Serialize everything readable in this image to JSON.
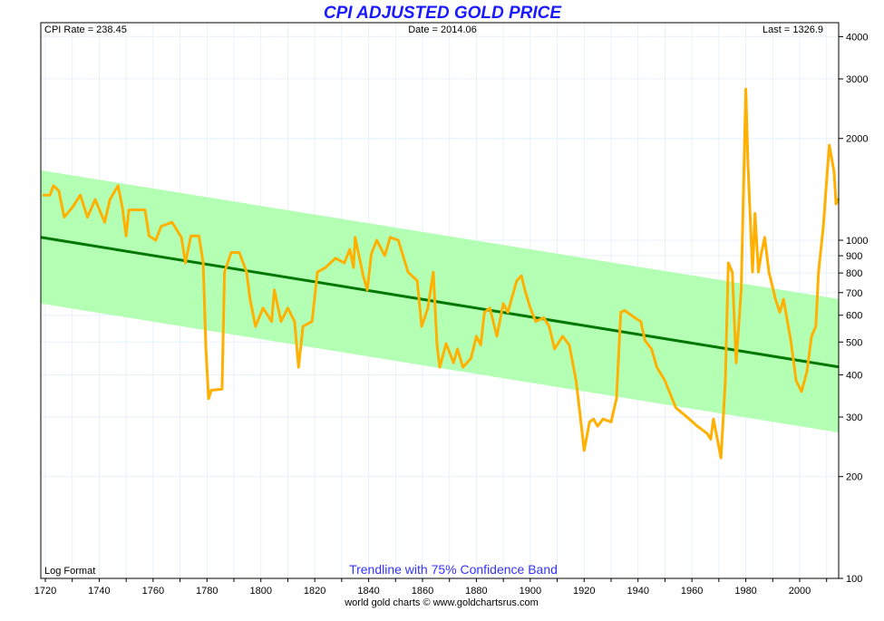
{
  "chart_data": {
    "type": "line",
    "title": "CPI ADJUSTED GOLD PRICE",
    "info": {
      "cpi_rate": "CPI Rate = 238.45",
      "date": "Date = 2014.06",
      "last": "Last = 1326.9"
    },
    "scale_note": "Log Format",
    "annotation": "Trendline with 75% Confidence Band",
    "footer": "world gold charts © www.goldchartsrus.com",
    "y_scale": "log",
    "ylim": [
      100,
      4400
    ],
    "xlim": [
      1718.3,
      2014.5
    ],
    "grid": true,
    "x_ticks": [
      "1720",
      "1740",
      "1760",
      "1780",
      "1800",
      "1820",
      "1840",
      "1860",
      "1880",
      "1900",
      "1920",
      "1940",
      "1960",
      "1980",
      "2000"
    ],
    "y_ticks": [
      "100",
      "200",
      "300",
      "400",
      "500",
      "600",
      "700",
      "800",
      "900",
      "1000",
      "2000",
      "3000",
      "4000"
    ],
    "colors": {
      "price": "#ffb000",
      "trend": "#007700",
      "band": "#b3ffb3",
      "grid": "#e6f2fa",
      "title": "#1a1aff",
      "annotation": "#3333ff"
    },
    "trendline": [
      [
        1718.3,
        1020
      ],
      [
        2014.5,
        422
      ]
    ],
    "band_upper": [
      [
        1718.3,
        1610
      ],
      [
        2014.5,
        670
      ]
    ],
    "band_lower": [
      [
        1718.3,
        650
      ],
      [
        2014.5,
        270
      ]
    ],
    "series": [
      {
        "values": [
          [
            1719,
            1360
          ],
          [
            1721.7,
            1360
          ],
          [
            1723,
            1450
          ],
          [
            1725,
            1400
          ],
          [
            1727,
            1170
          ],
          [
            1730,
            1250
          ],
          [
            1733,
            1360
          ],
          [
            1735.6,
            1170
          ],
          [
            1738.5,
            1320
          ],
          [
            1742,
            1130
          ],
          [
            1744,
            1320
          ],
          [
            1747,
            1450
          ],
          [
            1748.6,
            1250
          ],
          [
            1750,
            1030
          ],
          [
            1751,
            1230
          ],
          [
            1757,
            1230
          ],
          [
            1758.5,
            1030
          ],
          [
            1761,
            1000
          ],
          [
            1763,
            1100
          ],
          [
            1767,
            1130
          ],
          [
            1770.5,
            1020
          ],
          [
            1772,
            857
          ],
          [
            1774,
            1030
          ],
          [
            1777,
            1030
          ],
          [
            1778.6,
            857
          ],
          [
            1779.6,
            477
          ],
          [
            1780.6,
            340
          ],
          [
            1781.6,
            360
          ],
          [
            1785.6,
            363
          ],
          [
            1786.5,
            805
          ],
          [
            1789,
            920
          ],
          [
            1792,
            920
          ],
          [
            1794.7,
            805
          ],
          [
            1796,
            669
          ],
          [
            1798,
            556
          ],
          [
            1800.8,
            630
          ],
          [
            1804,
            575
          ],
          [
            1805,
            713
          ],
          [
            1807.5,
            575
          ],
          [
            1810,
            630
          ],
          [
            1812.5,
            575
          ],
          [
            1814,
            421
          ],
          [
            1815.6,
            556
          ],
          [
            1819,
            575
          ],
          [
            1821,
            805
          ],
          [
            1824,
            830
          ],
          [
            1827.7,
            885
          ],
          [
            1831,
            857
          ],
          [
            1833,
            940
          ],
          [
            1834.4,
            830
          ],
          [
            1835,
            1020
          ],
          [
            1838,
            785
          ],
          [
            1839.5,
            713
          ],
          [
            1841,
            910
          ],
          [
            1843,
            1000
          ],
          [
            1846,
            900
          ],
          [
            1848,
            1020
          ],
          [
            1851,
            1000
          ],
          [
            1854.6,
            805
          ],
          [
            1858,
            760
          ],
          [
            1859.7,
            556
          ],
          [
            1862,
            630
          ],
          [
            1864,
            805
          ],
          [
            1865.4,
            490
          ],
          [
            1866.4,
            421
          ],
          [
            1868.8,
            495
          ],
          [
            1871.5,
            434
          ],
          [
            1873,
            477
          ],
          [
            1875,
            421
          ],
          [
            1878,
            448
          ],
          [
            1880,
            520
          ],
          [
            1881.6,
            490
          ],
          [
            1883,
            612
          ],
          [
            1885,
            630
          ],
          [
            1887.6,
            520
          ],
          [
            1890,
            650
          ],
          [
            1891.7,
            612
          ],
          [
            1893,
            669
          ],
          [
            1895,
            760
          ],
          [
            1896.7,
            785
          ],
          [
            1898,
            713
          ],
          [
            1900,
            630
          ],
          [
            1902,
            575
          ],
          [
            1905,
            590
          ],
          [
            1907,
            556
          ],
          [
            1909,
            477
          ],
          [
            1912,
            520
          ],
          [
            1914.5,
            490
          ],
          [
            1917,
            384
          ],
          [
            1918.6,
            300
          ],
          [
            1920,
            239
          ],
          [
            1922,
            290
          ],
          [
            1923.5,
            296
          ],
          [
            1925,
            282
          ],
          [
            1927,
            296
          ],
          [
            1930,
            290
          ],
          [
            1932,
            340
          ],
          [
            1933.6,
            612
          ],
          [
            1935,
            620
          ],
          [
            1938.8,
            590
          ],
          [
            1941,
            575
          ],
          [
            1942.6,
            505
          ],
          [
            1945,
            477
          ],
          [
            1947,
            421
          ],
          [
            1950,
            384
          ],
          [
            1954,
            320
          ],
          [
            1959,
            296
          ],
          [
            1962,
            282
          ],
          [
            1965.7,
            268
          ],
          [
            1967,
            258
          ],
          [
            1968,
            296
          ],
          [
            1970.8,
            227
          ],
          [
            1972.4,
            384
          ],
          [
            1973.5,
            857
          ],
          [
            1975,
            805
          ],
          [
            1976.4,
            434
          ],
          [
            1978.3,
            713
          ],
          [
            1980,
            2800
          ],
          [
            1980.8,
            1690
          ],
          [
            1982.5,
            805
          ],
          [
            1983.4,
            1200
          ],
          [
            1984.7,
            805
          ],
          [
            1985.7,
            910
          ],
          [
            1987,
            1020
          ],
          [
            1988.6,
            805
          ],
          [
            1991,
            669
          ],
          [
            1992.6,
            612
          ],
          [
            1994,
            669
          ],
          [
            1996.7,
            505
          ],
          [
            1998.7,
            384
          ],
          [
            2000.7,
            357
          ],
          [
            2002.7,
            409
          ],
          [
            2004.4,
            520
          ],
          [
            2006,
            556
          ],
          [
            2007,
            805
          ],
          [
            2008.8,
            1100
          ],
          [
            2010,
            1497
          ],
          [
            2011,
            1910
          ],
          [
            2012.8,
            1590
          ],
          [
            2013.5,
            1280
          ],
          [
            2014.4,
            1330
          ]
        ]
      }
    ]
  }
}
